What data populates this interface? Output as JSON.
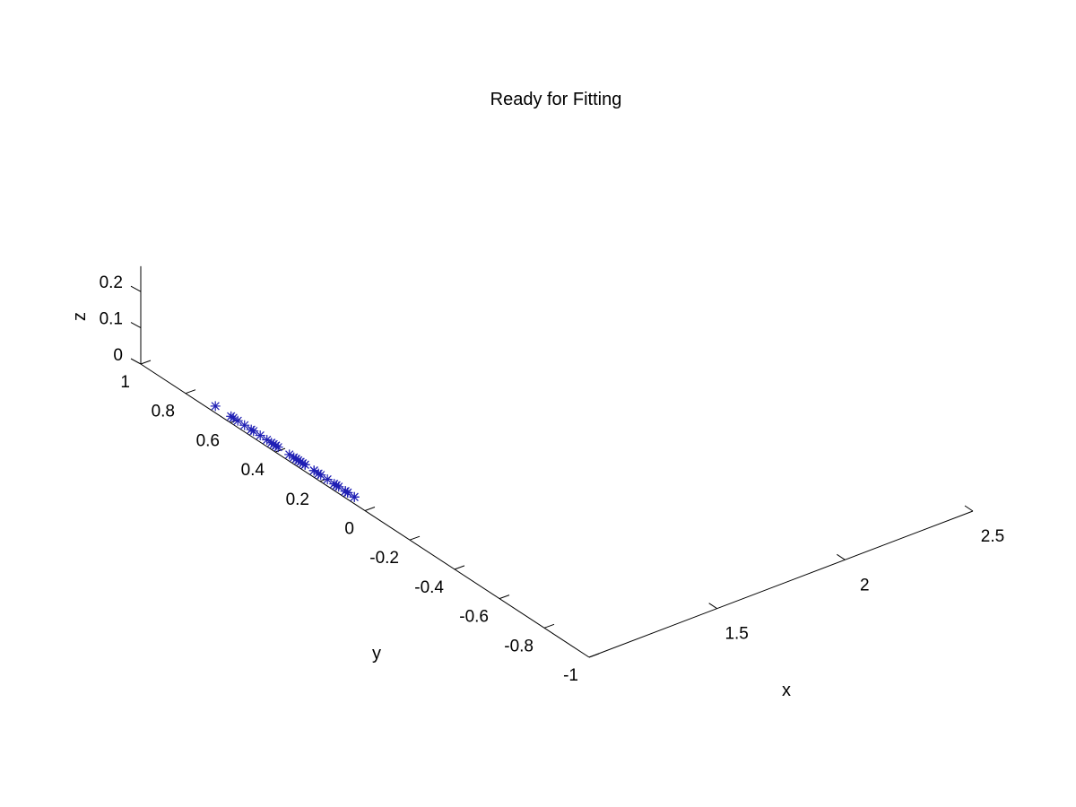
{
  "chart_data": {
    "type": "scatter3d",
    "title": "Ready for Fitting",
    "xlabel": "x",
    "ylabel": "y",
    "zlabel": "z",
    "xlim": [
      1,
      2.5
    ],
    "ylim": [
      -1,
      1
    ],
    "zlim": [
      0,
      0.27
    ],
    "x_ticks": [
      "1.5",
      "2",
      "2.5"
    ],
    "y_ticks": [
      "1",
      "0.8",
      "0.6",
      "0.4",
      "0.2",
      "0",
      "-0.2",
      "-0.4",
      "-0.6",
      "-0.8",
      "-1"
    ],
    "z_ticks": [
      "0",
      "0.1",
      "0.2"
    ],
    "grid": false,
    "marker": "asterisk",
    "marker_color": "#1f1fb4",
    "series": [
      {
        "x": [
          1.02,
          1.02,
          1.02,
          1.02,
          1.02,
          1.02,
          1.02,
          1.02,
          1.02,
          1.02,
          1.02,
          1.02,
          1.02,
          1.02,
          1.02,
          1.02,
          1.02,
          1.02,
          1.02,
          1.02,
          1.02,
          1.02,
          1.02,
          1.02,
          1.02,
          1.02,
          1.02,
          1.02,
          1.02,
          1.02,
          1.02,
          1.02,
          1.02,
          1.02,
          1.02,
          1.02,
          1.02,
          1.02
        ],
        "y": [
          0.69,
          0.62,
          0.61,
          0.59,
          0.56,
          0.53,
          0.52,
          0.49,
          0.46,
          0.44,
          0.43,
          0.42,
          0.42,
          0.41,
          0.36,
          0.34,
          0.33,
          0.33,
          0.32,
          0.31,
          0.3,
          0.29,
          0.29,
          0.25,
          0.25,
          0.23,
          0.22,
          0.19,
          0.16,
          0.15,
          0.15,
          0.14,
          0.1,
          0.11,
          0.11,
          0.1,
          0.07,
          0.07
        ],
        "z": [
          0.004,
          0.004,
          0.004,
          0.004,
          0.004,
          0.004,
          0.004,
          0.004,
          0.004,
          0.004,
          0.004,
          0.004,
          0.004,
          0.004,
          0.004,
          0.004,
          0.004,
          0.004,
          0.004,
          0.004,
          0.004,
          0.004,
          0.004,
          0.004,
          0.004,
          0.004,
          0.004,
          0.004,
          0.004,
          0.004,
          0.004,
          0.004,
          0.004,
          0.004,
          0.004,
          0.004,
          0.004,
          0.004
        ]
      }
    ]
  }
}
